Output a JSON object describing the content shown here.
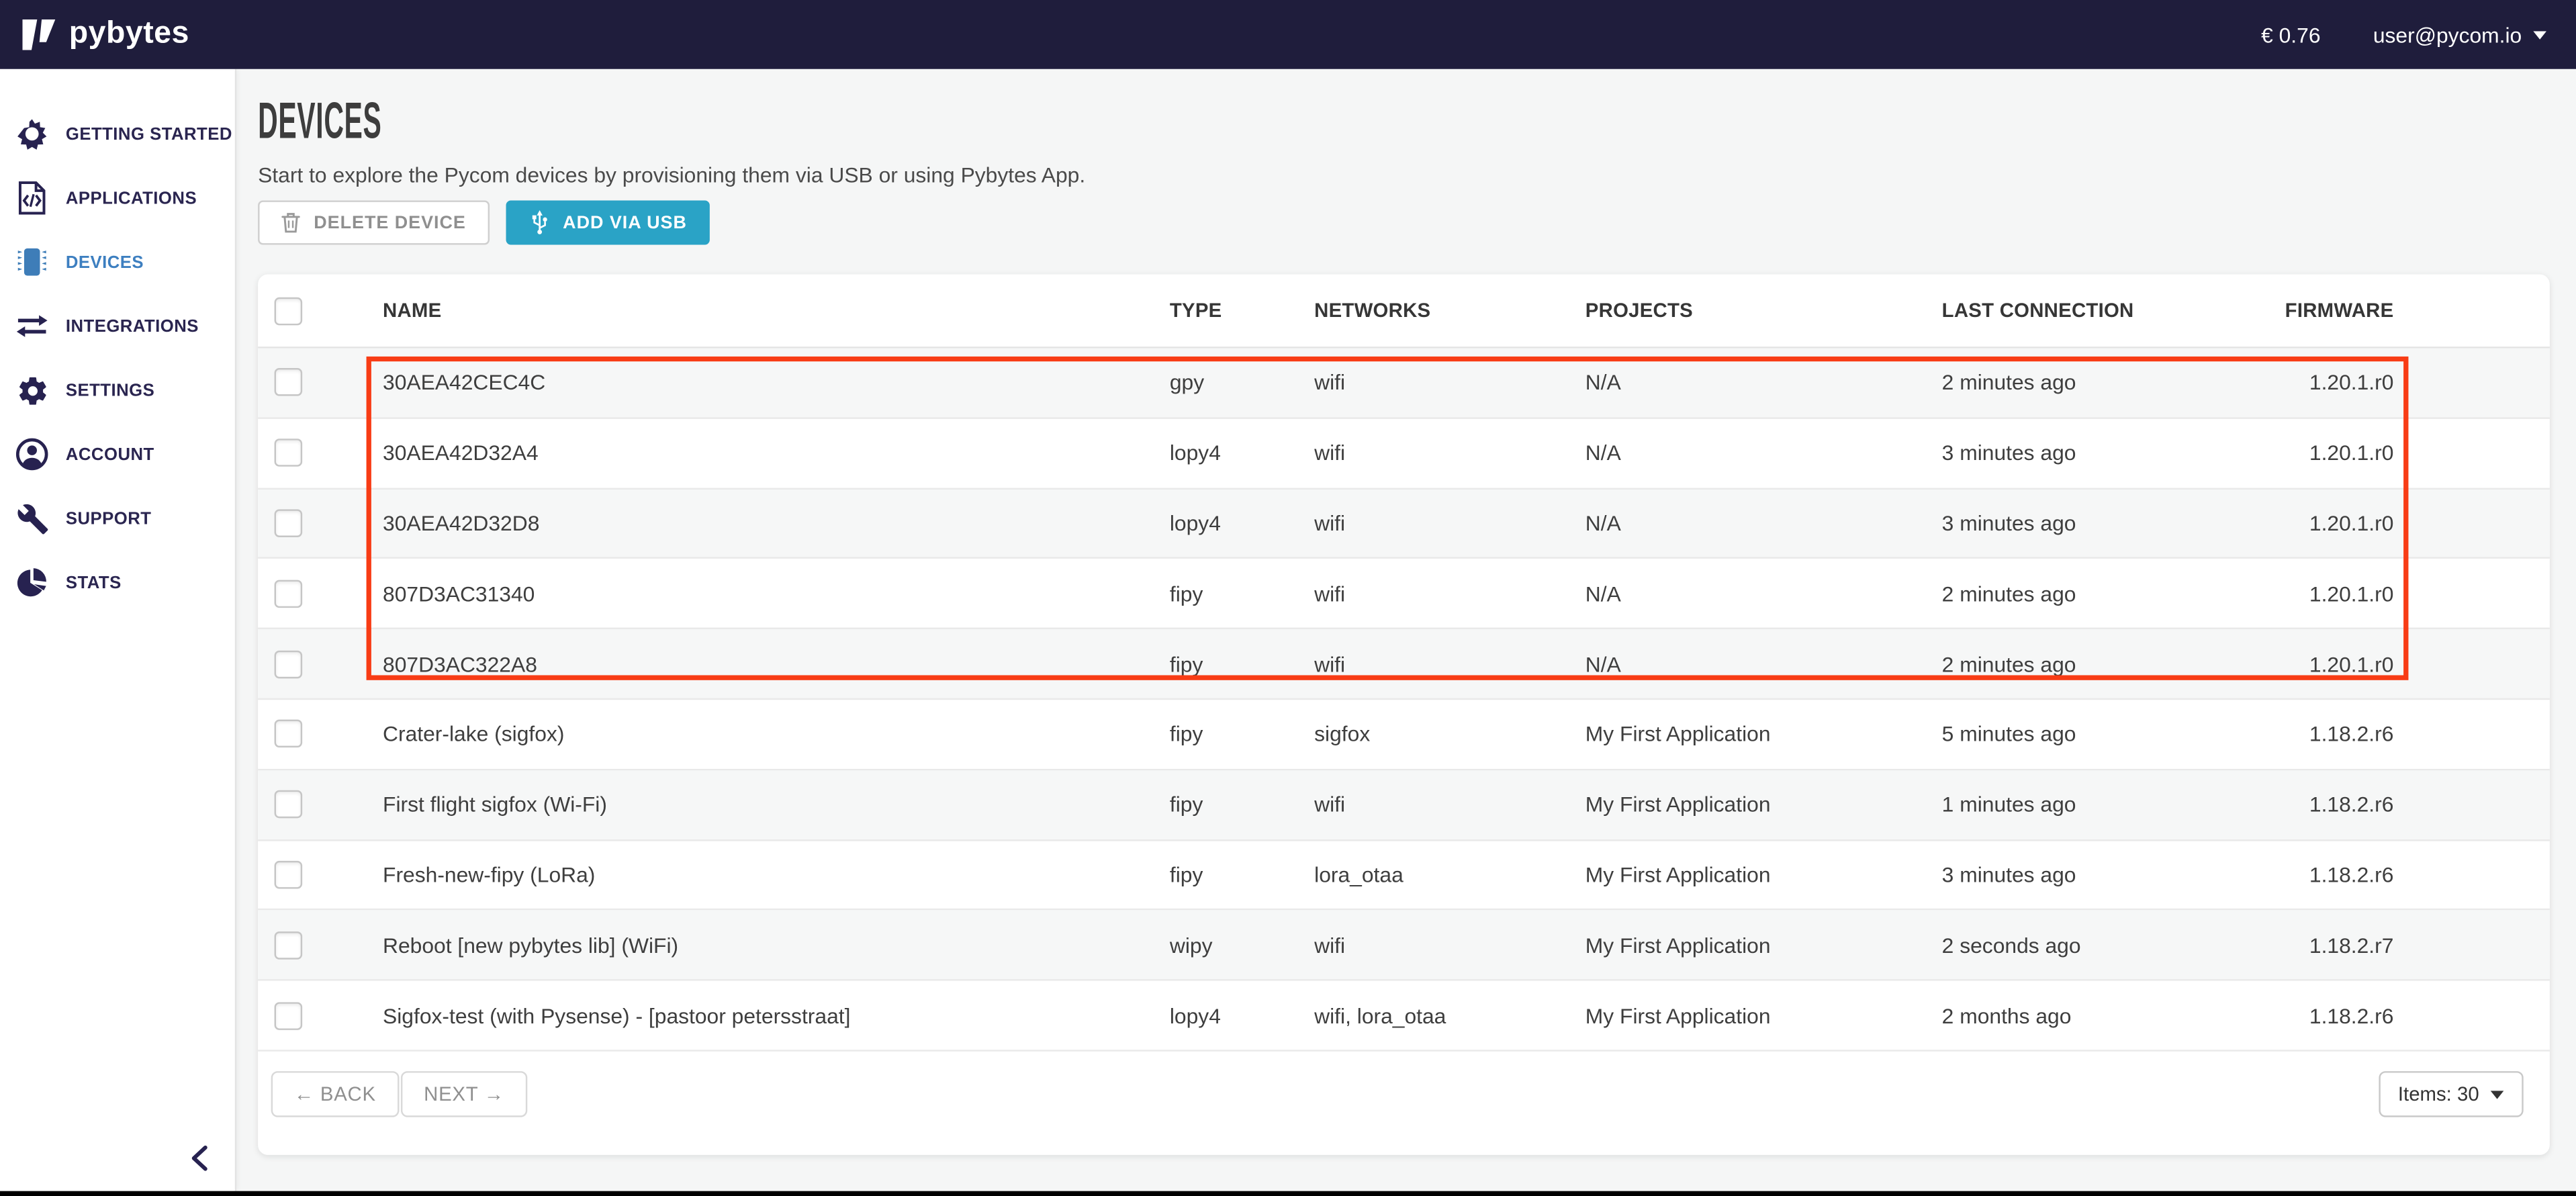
{
  "topbar": {
    "logo_text": "pybytes",
    "balance": "€ 0.76",
    "user_email": "user@pycom.io"
  },
  "sidebar": {
    "items": [
      {
        "label": "GETTING STARTED",
        "icon": "sun-icon",
        "active": false
      },
      {
        "label": "APPLICATIONS",
        "icon": "code-document-icon",
        "active": false
      },
      {
        "label": "DEVICES",
        "icon": "chip-icon",
        "active": true
      },
      {
        "label": "INTEGRATIONS",
        "icon": "arrows-exchange-icon",
        "active": false
      },
      {
        "label": "SETTINGS",
        "icon": "gear-icon",
        "active": false
      },
      {
        "label": "ACCOUNT",
        "icon": "user-icon",
        "active": false
      },
      {
        "label": "SUPPORT",
        "icon": "wrench-icon",
        "active": false
      },
      {
        "label": "STATS",
        "icon": "pie-chart-icon",
        "active": false
      }
    ]
  },
  "main": {
    "title": "DEVICES",
    "subtitle": "Start to explore the Pycom devices by provisioning them via USB or using Pybytes App.",
    "delete_button": "DELETE DEVICE",
    "add_button": "ADD VIA USB"
  },
  "table": {
    "headers": {
      "name": "NAME",
      "type": "TYPE",
      "networks": "NETWORKS",
      "projects": "PROJECTS",
      "last_connection": "LAST CONNECTION",
      "firmware": "FIRMWARE"
    },
    "rows": [
      {
        "name": "30AEA42CEC4C",
        "type": "gpy",
        "networks": "wifi",
        "projects": "N/A",
        "last_connection": "2 minutes ago",
        "firmware": "1.20.1.r0",
        "highlighted": true
      },
      {
        "name": "30AEA42D32A4",
        "type": "lopy4",
        "networks": "wifi",
        "projects": "N/A",
        "last_connection": "3 minutes ago",
        "firmware": "1.20.1.r0",
        "highlighted": true
      },
      {
        "name": "30AEA42D32D8",
        "type": "lopy4",
        "networks": "wifi",
        "projects": "N/A",
        "last_connection": "3 minutes ago",
        "firmware": "1.20.1.r0",
        "highlighted": true
      },
      {
        "name": "807D3AC31340",
        "type": "fipy",
        "networks": "wifi",
        "projects": "N/A",
        "last_connection": "2 minutes ago",
        "firmware": "1.20.1.r0",
        "highlighted": true
      },
      {
        "name": "807D3AC322A8",
        "type": "fipy",
        "networks": "wifi",
        "projects": "N/A",
        "last_connection": "2 minutes ago",
        "firmware": "1.20.1.r0",
        "highlighted": true
      },
      {
        "name": "Crater-lake (sigfox)",
        "type": "fipy",
        "networks": "sigfox",
        "projects": "My First Application",
        "last_connection": "5 minutes ago",
        "firmware": "1.18.2.r6",
        "highlighted": false
      },
      {
        "name": "First flight sigfox (Wi-Fi)",
        "type": "fipy",
        "networks": "wifi",
        "projects": "My First Application",
        "last_connection": "1 minutes ago",
        "firmware": "1.18.2.r6",
        "highlighted": false
      },
      {
        "name": "Fresh-new-fipy (LoRa)",
        "type": "fipy",
        "networks": "lora_otaa",
        "projects": "My First Application",
        "last_connection": "3 minutes ago",
        "firmware": "1.18.2.r6",
        "highlighted": false
      },
      {
        "name": "Reboot [new pybytes lib] (WiFi)",
        "type": "wipy",
        "networks": "wifi",
        "projects": "My First Application",
        "last_connection": "2 seconds ago",
        "firmware": "1.18.2.r7",
        "highlighted": false
      },
      {
        "name": "Sigfox-test (with Pysense) - [pastoor petersstraat]",
        "type": "lopy4",
        "networks": "wifi, lora_otaa",
        "projects": "My First Application",
        "last_connection": "2 months ago",
        "firmware": "1.18.2.r6",
        "highlighted": false
      }
    ],
    "highlight_box": {
      "first_row": 1,
      "last_row": 5,
      "color": "#f83c15"
    }
  },
  "pagination": {
    "back_label": "← BACK",
    "next_label": "NEXT →",
    "items_label": "Items: 30"
  },
  "colors": {
    "topbar_bg": "#1f1d3c",
    "sidebar_text": "#2a2550",
    "active_blue": "#3d7fc0",
    "chip_icon_blue": "#3e7db8",
    "add_button_teal": "#2aa3c6",
    "highlight_red": "#f83c15"
  }
}
